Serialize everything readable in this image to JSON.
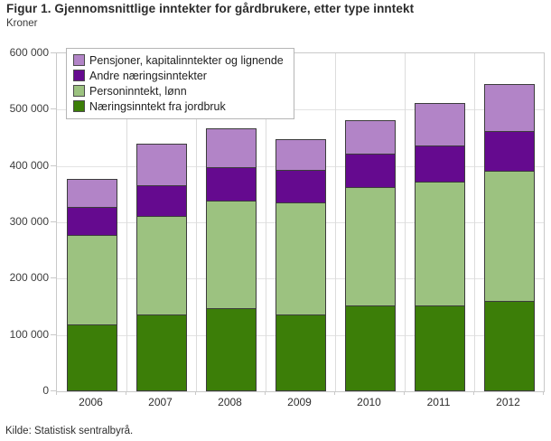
{
  "chart_data": {
    "type": "bar",
    "stacked": true,
    "title": "Figur 1. Gjennomsnittlige inntekter for gårdbrukere, etter type inntekt",
    "subtitle": "Kroner",
    "source": "Kilde: Statistisk sentralbyrå.",
    "categories": [
      "2006",
      "2007",
      "2008",
      "2009",
      "2010",
      "2011",
      "2012"
    ],
    "xlabel": "",
    "ylabel": "Kroner",
    "ylim": [
      0,
      600000
    ],
    "ytick_interval": 100000,
    "ytick_labels": [
      "0",
      "100 000",
      "200 000",
      "300 000",
      "400 000",
      "500 000",
      "600 000"
    ],
    "grid": true,
    "legend_position": "top-left-inside",
    "series": [
      {
        "name": "Næringsinntekt fra jordbruk",
        "color": "#3c7e08",
        "values": [
          118000,
          137000,
          148000,
          136000,
          153000,
          153000,
          161000
        ]
      },
      {
        "name": "Personinntekt, lønn",
        "color": "#9cc280",
        "values": [
          159000,
          174000,
          191000,
          200000,
          210000,
          220000,
          231000
        ]
      },
      {
        "name": "Andre næringsinntekter",
        "color": "#650a8f",
        "values": [
          50000,
          55000,
          59000,
          57000,
          59000,
          63000,
          70000
        ]
      },
      {
        "name": "Pensjoner, kapitalinntekter og lignende",
        "color": "#b284c7",
        "values": [
          50000,
          74000,
          69000,
          55000,
          60000,
          75000,
          84000
        ]
      }
    ],
    "legend_order_top_to_bottom": [
      "Pensjoner, kapitalinntekter og lignende",
      "Andre næringsinntekter",
      "Personinntekt, lønn",
      "Næringsinntekt fra jordbruk"
    ]
  }
}
